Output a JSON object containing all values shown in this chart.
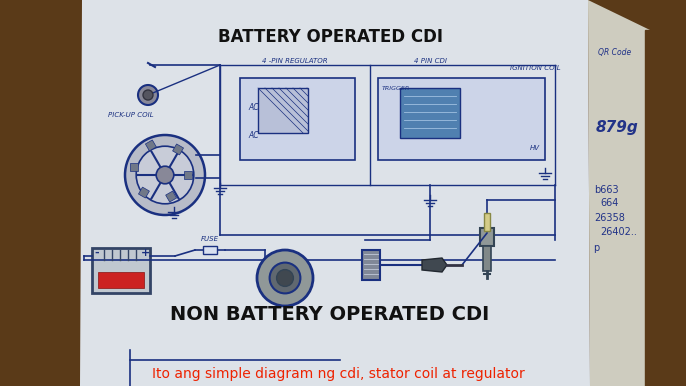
{
  "bg_color": "#5a3a18",
  "paper_main_color": "#dde0e5",
  "paper_right_color": "#d0cec8",
  "title_battery": "BATTERY OPERATED CDI",
  "title_non_battery": "NON BATTERY OPERATED CDI",
  "subtitle": "Ito ang simple diagram ng cdi, stator coil at regulator",
  "subtitle_color": "#ee2200",
  "title_color": "#111111",
  "title_fontsize": 12,
  "non_battery_fontsize": 14,
  "subtitle_fontsize": 10,
  "diagram_color": "#1a3080",
  "label_4pin_reg": "4 -PIN REGULATOR",
  "label_4pin_cdi": "4 PIN CDI",
  "label_ignition_coil": "IGNITION COIL",
  "label_pickup_coil": "PICK-UP COIL",
  "label_trigger": "TRIGGER",
  "label_fuse": "FUSE",
  "label_ac": "AC",
  "label_12v": "HV",
  "right_text": "QR Code",
  "right_numbers": [
    "b663",
    "664",
    "26358",
    "26402.."
  ],
  "right_scribble": "879g"
}
